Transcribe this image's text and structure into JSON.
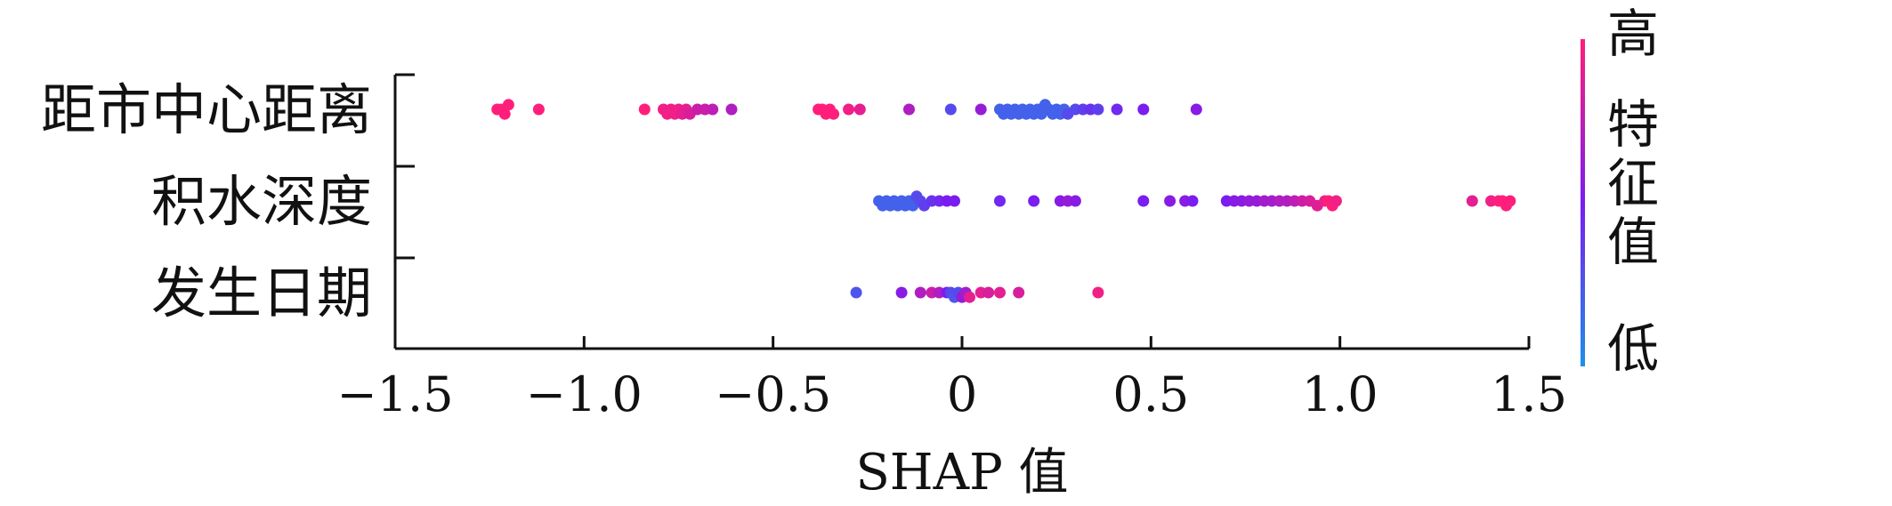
{
  "chart_data": {
    "type": "scatter",
    "subtype": "shap-beeswarm",
    "title": "",
    "xlabel": "SHAP 值",
    "ylabel": "",
    "xlim": [
      -1.5,
      1.5
    ],
    "x_ticks": [
      {
        "value": -1.5,
        "label": "−1.5"
      },
      {
        "value": -1.0,
        "label": "−1.0"
      },
      {
        "value": -0.5,
        "label": "−0.5"
      },
      {
        "value": 0,
        "label": "0"
      },
      {
        "value": 0.5,
        "label": "0.5"
      },
      {
        "value": 1.0,
        "label": "1.0"
      },
      {
        "value": 1.5,
        "label": "1.5"
      }
    ],
    "grid": false,
    "categories": [
      "距市中心距离",
      "积水深度",
      "发生日期"
    ],
    "colorbar": {
      "title": "特征值",
      "high_label": "高",
      "low_label": "低",
      "high_color": "#ff1f7a",
      "mid_color": "#7b1cf0",
      "low_color": "#1e8fe6"
    },
    "series": [
      {
        "category": "距市中心距离",
        "points": [
          [
            -1.23,
            1.0
          ],
          [
            -1.22,
            1.0
          ],
          [
            -1.21,
            1.0
          ],
          [
            -1.2,
            1.0
          ],
          [
            -1.12,
            1.0
          ],
          [
            -0.84,
            1.0
          ],
          [
            -0.79,
            0.95
          ],
          [
            -0.78,
            0.95
          ],
          [
            -0.77,
            0.95
          ],
          [
            -0.76,
            0.95
          ],
          [
            -0.75,
            0.95
          ],
          [
            -0.74,
            0.9
          ],
          [
            -0.73,
            0.9
          ],
          [
            -0.72,
            0.85
          ],
          [
            -0.7,
            0.8
          ],
          [
            -0.68,
            0.8
          ],
          [
            -0.66,
            0.75
          ],
          [
            -0.61,
            0.7
          ],
          [
            -0.38,
            1.0
          ],
          [
            -0.37,
            1.0
          ],
          [
            -0.36,
            1.0
          ],
          [
            -0.35,
            1.0
          ],
          [
            -0.34,
            1.0
          ],
          [
            -0.3,
            0.95
          ],
          [
            -0.27,
            0.9
          ],
          [
            -0.14,
            0.7
          ],
          [
            -0.03,
            0.3
          ],
          [
            0.05,
            0.6
          ],
          [
            0.1,
            0.2
          ],
          [
            0.11,
            0.2
          ],
          [
            0.12,
            0.2
          ],
          [
            0.13,
            0.2
          ],
          [
            0.14,
            0.2
          ],
          [
            0.15,
            0.2
          ],
          [
            0.16,
            0.2
          ],
          [
            0.17,
            0.2
          ],
          [
            0.18,
            0.2
          ],
          [
            0.19,
            0.2
          ],
          [
            0.2,
            0.2
          ],
          [
            0.21,
            0.2
          ],
          [
            0.22,
            0.2
          ],
          [
            0.23,
            0.2
          ],
          [
            0.24,
            0.2
          ],
          [
            0.25,
            0.2
          ],
          [
            0.26,
            0.2
          ],
          [
            0.27,
            0.2
          ],
          [
            0.28,
            0.3
          ],
          [
            0.3,
            0.3
          ],
          [
            0.32,
            0.35
          ],
          [
            0.34,
            0.4
          ],
          [
            0.36,
            0.35
          ],
          [
            0.41,
            0.45
          ],
          [
            0.48,
            0.5
          ],
          [
            0.62,
            0.55
          ]
        ]
      },
      {
        "category": "积水深度",
        "points": [
          [
            -0.22,
            0.2
          ],
          [
            -0.21,
            0.2
          ],
          [
            -0.2,
            0.2
          ],
          [
            -0.19,
            0.2
          ],
          [
            -0.18,
            0.2
          ],
          [
            -0.17,
            0.2
          ],
          [
            -0.16,
            0.2
          ],
          [
            -0.15,
            0.2
          ],
          [
            -0.14,
            0.2
          ],
          [
            -0.13,
            0.2
          ],
          [
            -0.12,
            0.3
          ],
          [
            -0.11,
            0.3
          ],
          [
            -0.1,
            0.35
          ],
          [
            -0.08,
            0.4
          ],
          [
            -0.06,
            0.45
          ],
          [
            -0.04,
            0.5
          ],
          [
            -0.02,
            0.5
          ],
          [
            0.1,
            0.45
          ],
          [
            0.19,
            0.5
          ],
          [
            0.26,
            0.55
          ],
          [
            0.28,
            0.6
          ],
          [
            0.3,
            0.55
          ],
          [
            0.48,
            0.5
          ],
          [
            0.55,
            0.55
          ],
          [
            0.59,
            0.55
          ],
          [
            0.61,
            0.5
          ],
          [
            0.7,
            0.5
          ],
          [
            0.72,
            0.55
          ],
          [
            0.74,
            0.55
          ],
          [
            0.76,
            0.6
          ],
          [
            0.78,
            0.6
          ],
          [
            0.8,
            0.65
          ],
          [
            0.82,
            0.65
          ],
          [
            0.84,
            0.7
          ],
          [
            0.86,
            0.7
          ],
          [
            0.88,
            0.75
          ],
          [
            0.9,
            0.8
          ],
          [
            0.92,
            0.85
          ],
          [
            0.94,
            0.88
          ],
          [
            0.96,
            0.92
          ],
          [
            0.97,
            1.0
          ],
          [
            0.98,
            1.0
          ],
          [
            0.99,
            0.95
          ],
          [
            1.35,
            0.9
          ],
          [
            1.4,
            0.95
          ],
          [
            1.42,
            1.0
          ],
          [
            1.43,
            1.0
          ],
          [
            1.44,
            1.0
          ],
          [
            1.45,
            1.0
          ]
        ]
      },
      {
        "category": "发生日期",
        "points": [
          [
            -0.28,
            0.25
          ],
          [
            -0.16,
            0.55
          ],
          [
            -0.11,
            0.7
          ],
          [
            -0.08,
            0.8
          ],
          [
            -0.06,
            0.7
          ],
          [
            -0.04,
            0.5
          ],
          [
            -0.03,
            0.3
          ],
          [
            -0.02,
            0.25
          ],
          [
            -0.01,
            0.3
          ],
          [
            0.0,
            0.6
          ],
          [
            0.01,
            0.65
          ],
          [
            0.02,
            0.9
          ],
          [
            0.05,
            0.9
          ],
          [
            0.07,
            0.85
          ],
          [
            0.1,
            0.9
          ],
          [
            0.15,
            0.85
          ],
          [
            0.36,
            0.95
          ]
        ]
      }
    ]
  }
}
